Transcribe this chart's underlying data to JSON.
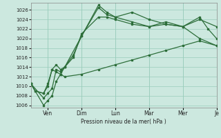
{
  "background_color": "#cce8df",
  "grid_color": "#99ccbb",
  "line_color": "#2d6e3a",
  "xlabel": "Pression niveau de la mer( hPa )",
  "ylim": [
    1005.5,
    1027.5
  ],
  "yticks": [
    1006,
    1008,
    1010,
    1012,
    1014,
    1016,
    1018,
    1020,
    1022,
    1024,
    1026
  ],
  "xlim": [
    0,
    22
  ],
  "xtick_positions": [
    2,
    6,
    10,
    14,
    18,
    22
  ],
  "xtick_labels": [
    "Ven",
    "Dim",
    "Lun",
    "Mar",
    "Mer",
    "Je"
  ],
  "series": [
    {
      "x": [
        0,
        0.5,
        1.5,
        2,
        2.5,
        3,
        3.5,
        4,
        6,
        8,
        9,
        10,
        12,
        14,
        16,
        18,
        20,
        22
      ],
      "y": [
        1010.5,
        1009.0,
        1008.5,
        1010.0,
        1013.5,
        1014.5,
        1013.5,
        1014.0,
        1020.5,
        1027.0,
        1025.5,
        1024.5,
        1025.5,
        1024.0,
        1023.0,
        1022.5,
        1024.0,
        1022.5
      ]
    },
    {
      "x": [
        0,
        0.5,
        1.5,
        2,
        2.5,
        3,
        3.5,
        4,
        5,
        6,
        8,
        9,
        10,
        12,
        14,
        16,
        18,
        20,
        22
      ],
      "y": [
        1010.5,
        1009.0,
        1008.5,
        1010.5,
        1013.5,
        1013.0,
        1012.5,
        1014.0,
        1016.0,
        1021.0,
        1024.5,
        1024.5,
        1024.0,
        1023.0,
        1022.5,
        1023.5,
        1022.5,
        1020.0,
        1018.5
      ]
    },
    {
      "x": [
        0,
        1.5,
        2,
        2.5,
        3,
        3.5,
        4,
        6,
        8,
        10,
        12,
        14,
        16,
        18,
        20,
        22
      ],
      "y": [
        1010.5,
        1006.0,
        1007.0,
        1008.0,
        1011.0,
        1012.5,
        1012.0,
        1012.5,
        1013.5,
        1014.5,
        1015.5,
        1016.5,
        1017.5,
        1018.5,
        1019.5,
        1018.5
      ]
    },
    {
      "x": [
        0,
        1.5,
        2,
        2.5,
        3,
        3.5,
        4,
        5,
        6,
        8,
        9,
        10,
        12,
        14,
        16,
        18,
        20,
        21,
        22
      ],
      "y": [
        1010.5,
        1007.5,
        1008.5,
        1009.5,
        1013.5,
        1013.0,
        1014.0,
        1016.5,
        1020.5,
        1026.5,
        1025.0,
        1024.5,
        1023.5,
        1022.5,
        1023.0,
        1022.5,
        1024.5,
        1022.0,
        1020.0
      ]
    }
  ]
}
